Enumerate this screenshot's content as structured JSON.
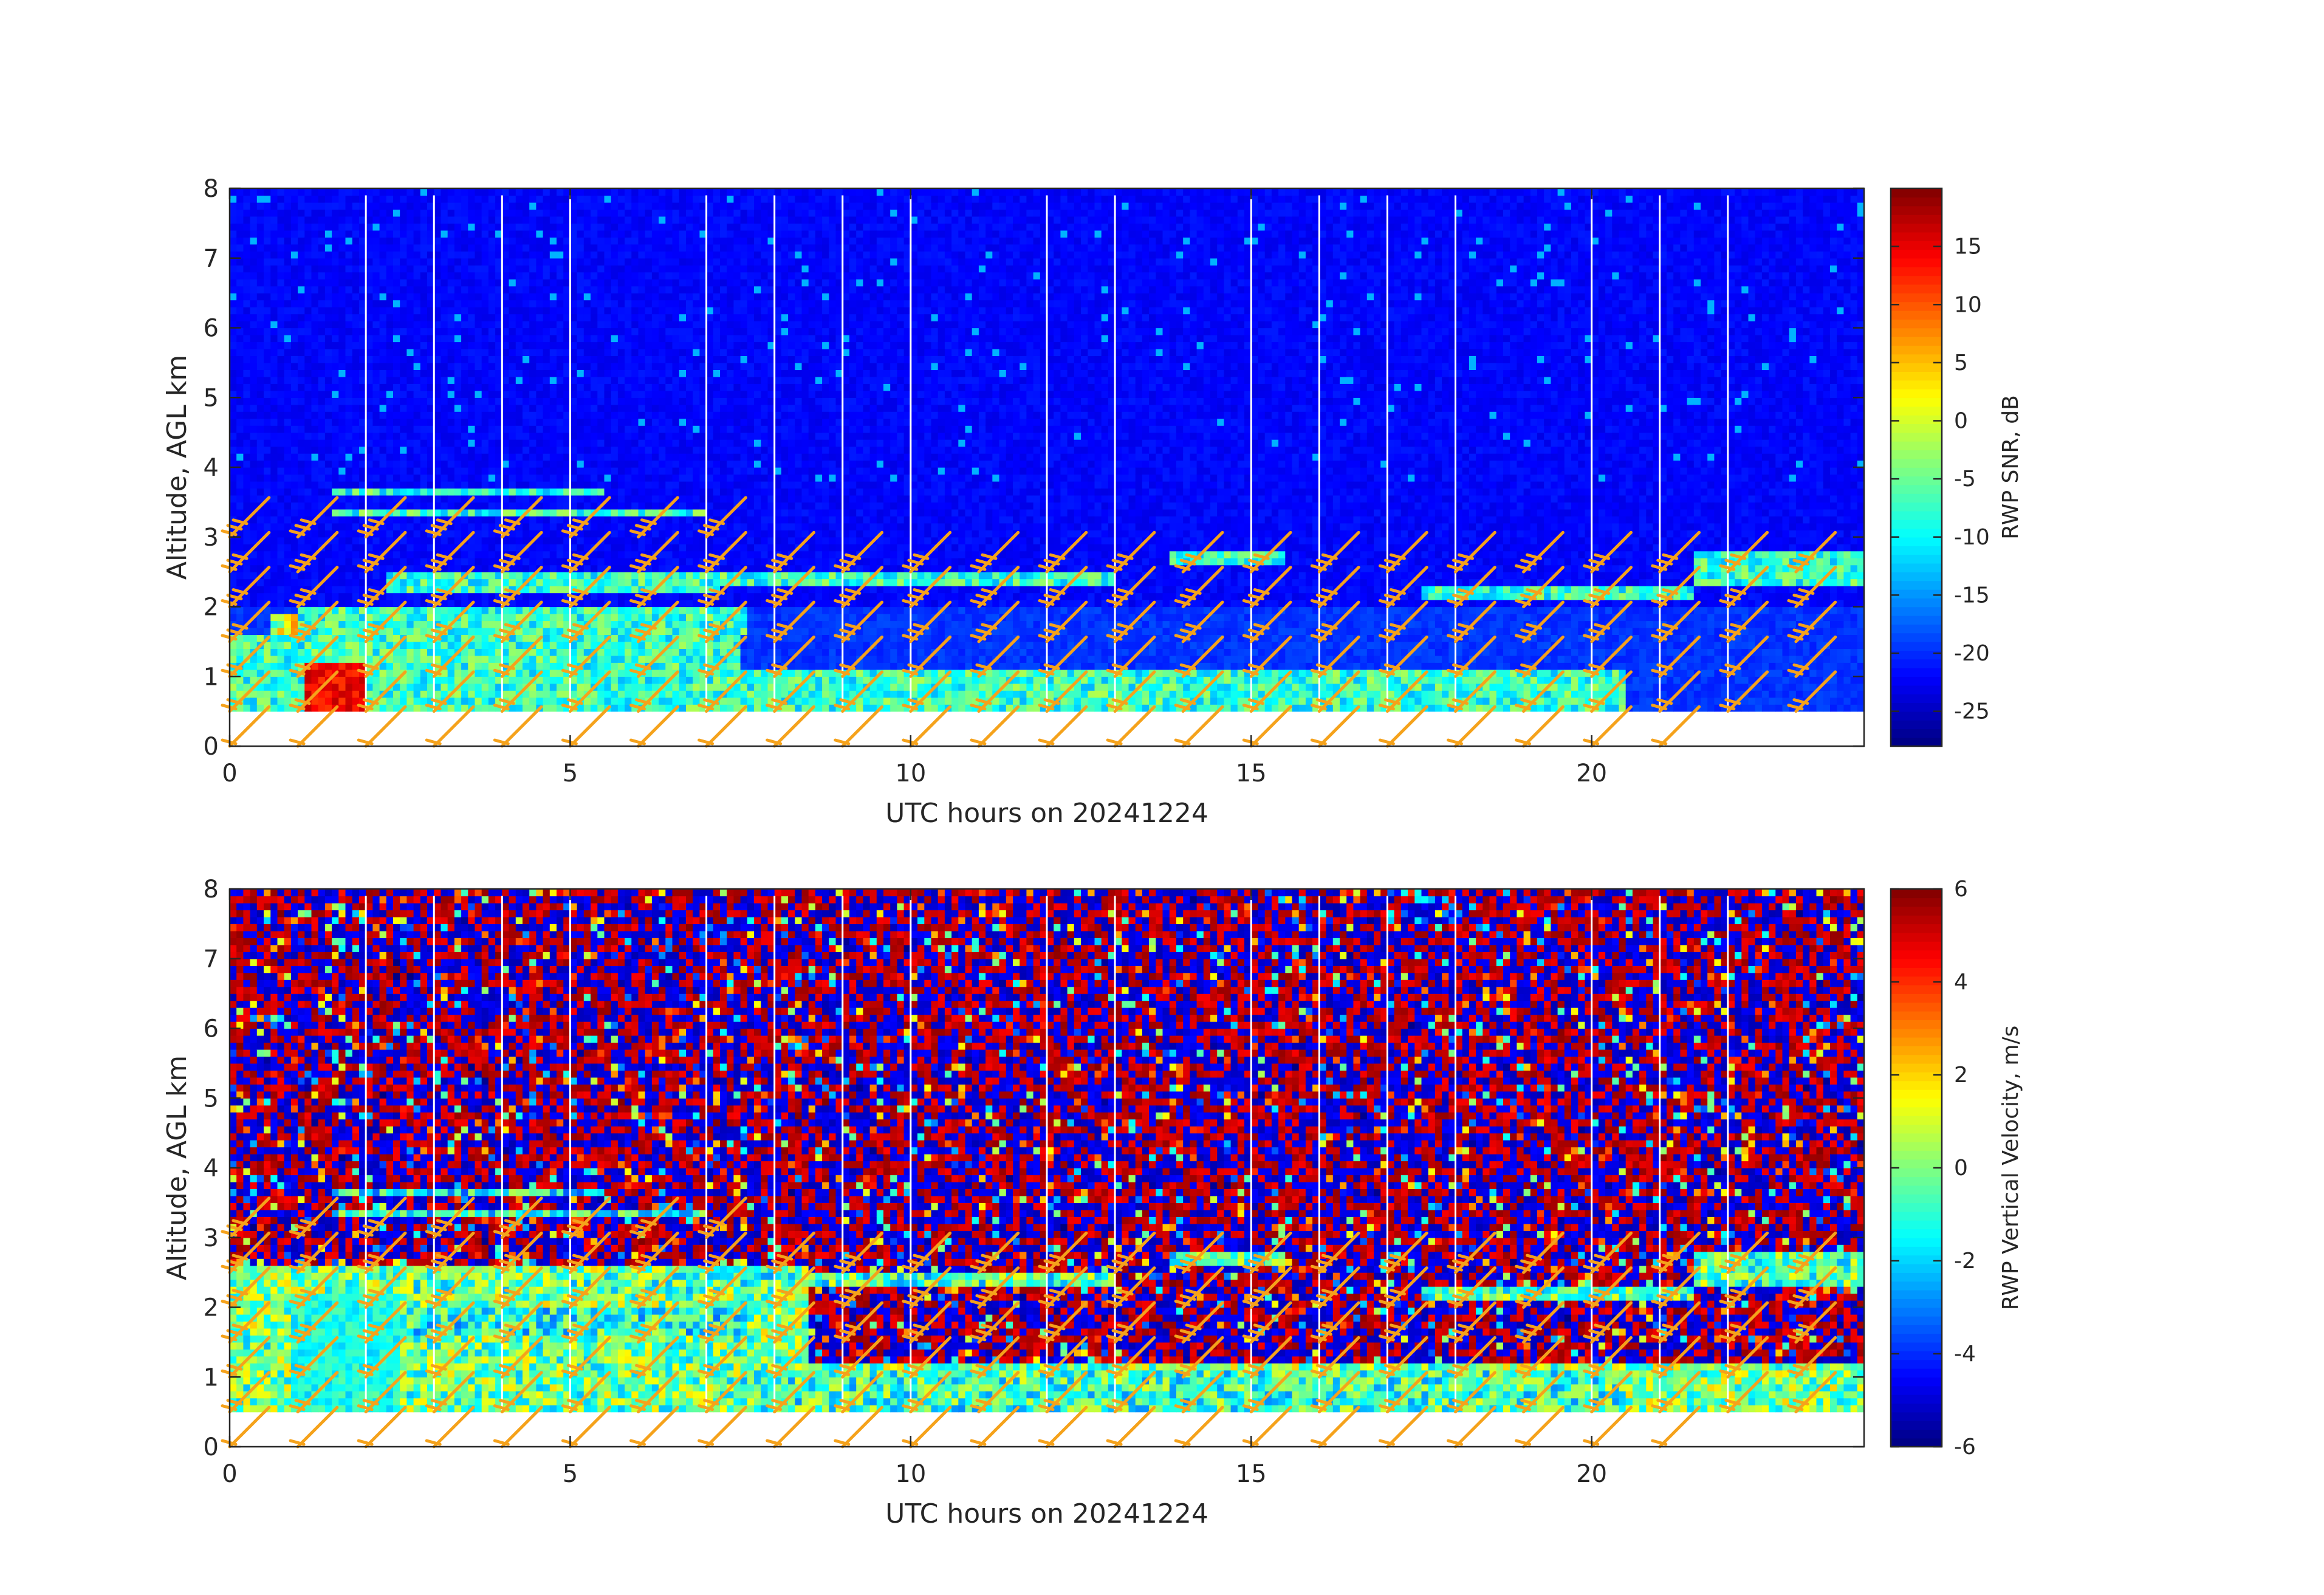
{
  "chart_data": [
    {
      "type": "heatmap",
      "xlabel": "UTC hours on 20241224",
      "ylabel": "Altitude, AGL km",
      "xlim": [
        0,
        24
      ],
      "ylim": [
        0,
        8
      ],
      "xticks": [
        "0",
        "5",
        "10",
        "15",
        "20"
      ],
      "yticks": [
        "0",
        "1",
        "2",
        "3",
        "4",
        "5",
        "6",
        "7",
        "8"
      ],
      "colorbar": {
        "label": "RWP SNR, dB",
        "colormap": "jet",
        "clim": [
          -28,
          20
        ],
        "ticks": [
          "-25",
          "-20",
          "-15",
          "-10",
          "-5",
          "0",
          "5",
          "10",
          "15"
        ]
      },
      "data_bottom_km": 0.5,
      "data_top_km": 7.9,
      "gap_hours": [
        2.0,
        3.0,
        4.0,
        5.0,
        7.0,
        8.0,
        9.0,
        10.0,
        12.0,
        13.0,
        15.0,
        16.0,
        17.0,
        18.0,
        20.0,
        21.0,
        22.0
      ],
      "wind_barbs_overlay": true,
      "barb_color": "#f5a21b"
    },
    {
      "type": "heatmap",
      "xlabel": "UTC hours on 20241224",
      "ylabel": "Altitude, AGL km",
      "xlim": [
        0,
        24
      ],
      "ylim": [
        0,
        8
      ],
      "xticks": [
        "0",
        "5",
        "10",
        "15",
        "20"
      ],
      "yticks": [
        "0",
        "1",
        "2",
        "3",
        "4",
        "5",
        "6",
        "7",
        "8"
      ],
      "colorbar": {
        "label": "RWP Vertical Velocity, m/s",
        "colormap": "jet",
        "clim": [
          -6,
          6
        ],
        "ticks": [
          "-6",
          "-4",
          "-2",
          "0",
          "2",
          "4",
          "6"
        ]
      },
      "data_bottom_km": 0.5,
      "data_top_km": 7.9,
      "gap_hours": [
        2.0,
        3.0,
        4.0,
        5.0,
        7.0,
        8.0,
        9.0,
        10.0,
        12.0,
        13.0,
        15.0,
        16.0,
        17.0,
        18.0,
        20.0,
        21.0,
        22.0
      ],
      "wind_barbs_overlay": true,
      "barb_color": "#f5a21b"
    }
  ]
}
